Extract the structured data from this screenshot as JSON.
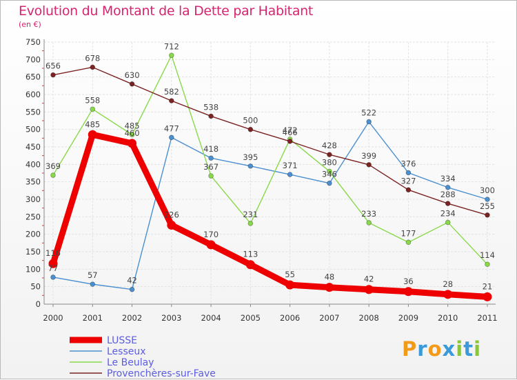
{
  "title": "Evolution du Montant de la Dette par Habitant",
  "subtitle": "(en €)",
  "brand": {
    "letters": [
      "P",
      "r",
      "o",
      "x",
      "i",
      "t",
      "i"
    ],
    "colors": [
      "#f29a1a",
      "#3b9ad9",
      "#f29a1a",
      "#3b9ad9",
      "#8bc53f",
      "#3b9ad9",
      "#8bc53f"
    ]
  },
  "chart_data": {
    "type": "line",
    "x": [
      "2000",
      "2001",
      "2002",
      "2003",
      "2004",
      "2005",
      "2006",
      "2007",
      "2008",
      "2009",
      "2010",
      "2011"
    ],
    "yticks": [
      "0",
      "50",
      "100",
      "150",
      "200",
      "250",
      "300",
      "350",
      "400",
      "450",
      "500",
      "550",
      "600",
      "650",
      "700",
      "750"
    ],
    "ylim": [
      0,
      750
    ],
    "grid": true,
    "legend_position": "bottom-left",
    "series": [
      {
        "name": "LUSSE",
        "color": "#ee0000",
        "values": [
          116,
          485,
          460,
          226,
          170,
          113,
          55,
          48,
          42,
          36,
          28,
          21
        ]
      },
      {
        "name": "Lesseux",
        "color": "#4a8fd0",
        "values": [
          77,
          57,
          42,
          477,
          418,
          395,
          371,
          346,
          522,
          376,
          334,
          300
        ]
      },
      {
        "name": "Le Beulay",
        "color": "#88d94a",
        "values": [
          369,
          558,
          485,
          712,
          367,
          231,
          472,
          380,
          233,
          177,
          234,
          114
        ]
      },
      {
        "name": "Provenchères-sur-Fave",
        "color": "#7b2222",
        "values": [
          656,
          678,
          630,
          582,
          538,
          500,
          466,
          428,
          399,
          327,
          288,
          255
        ]
      }
    ]
  }
}
